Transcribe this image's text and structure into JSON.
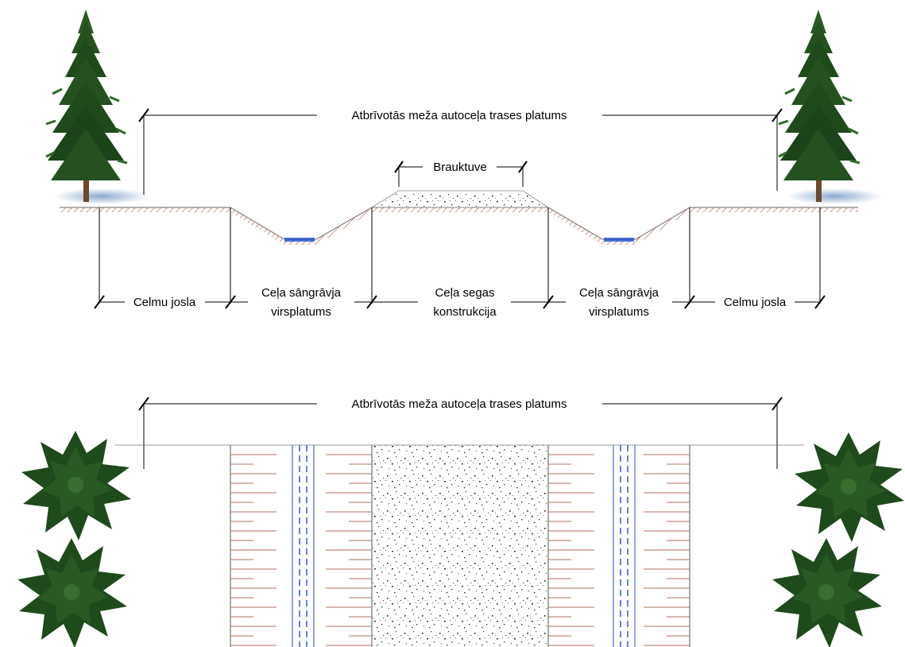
{
  "cross_section": {
    "cleared_width_label": "Atbrīvotās meža autoceļa trases platums",
    "carriageway_label": "Brauktuve",
    "stump_strip_left": "Celmu josla",
    "stump_strip_right": "Celmu josla",
    "ditch_left_line1": "Ceļa sāngrāvja",
    "ditch_left_line2": "virsplatums",
    "pavement_line1": "Ceļa segas",
    "pavement_line2": "konstrukcija",
    "ditch_right_line1": "Ceļa sāngrāvja",
    "ditch_right_line2": "virsplatums"
  },
  "plan_view": {
    "cleared_width_label": "Atbrīvotās meža autoceļa trases platums"
  },
  "colors": {
    "tree_foliage": "#1f4a1c",
    "tree_trunk": "#6b4a2e",
    "tree_marker": "#d22020",
    "ground_hatch": "#b07060",
    "water": "#1e4fd0",
    "gravel_dot": "#222222"
  },
  "icons": {
    "tree_elevation": "pine-tree-icon",
    "tree_top_view": "tree-top-view-icon"
  }
}
